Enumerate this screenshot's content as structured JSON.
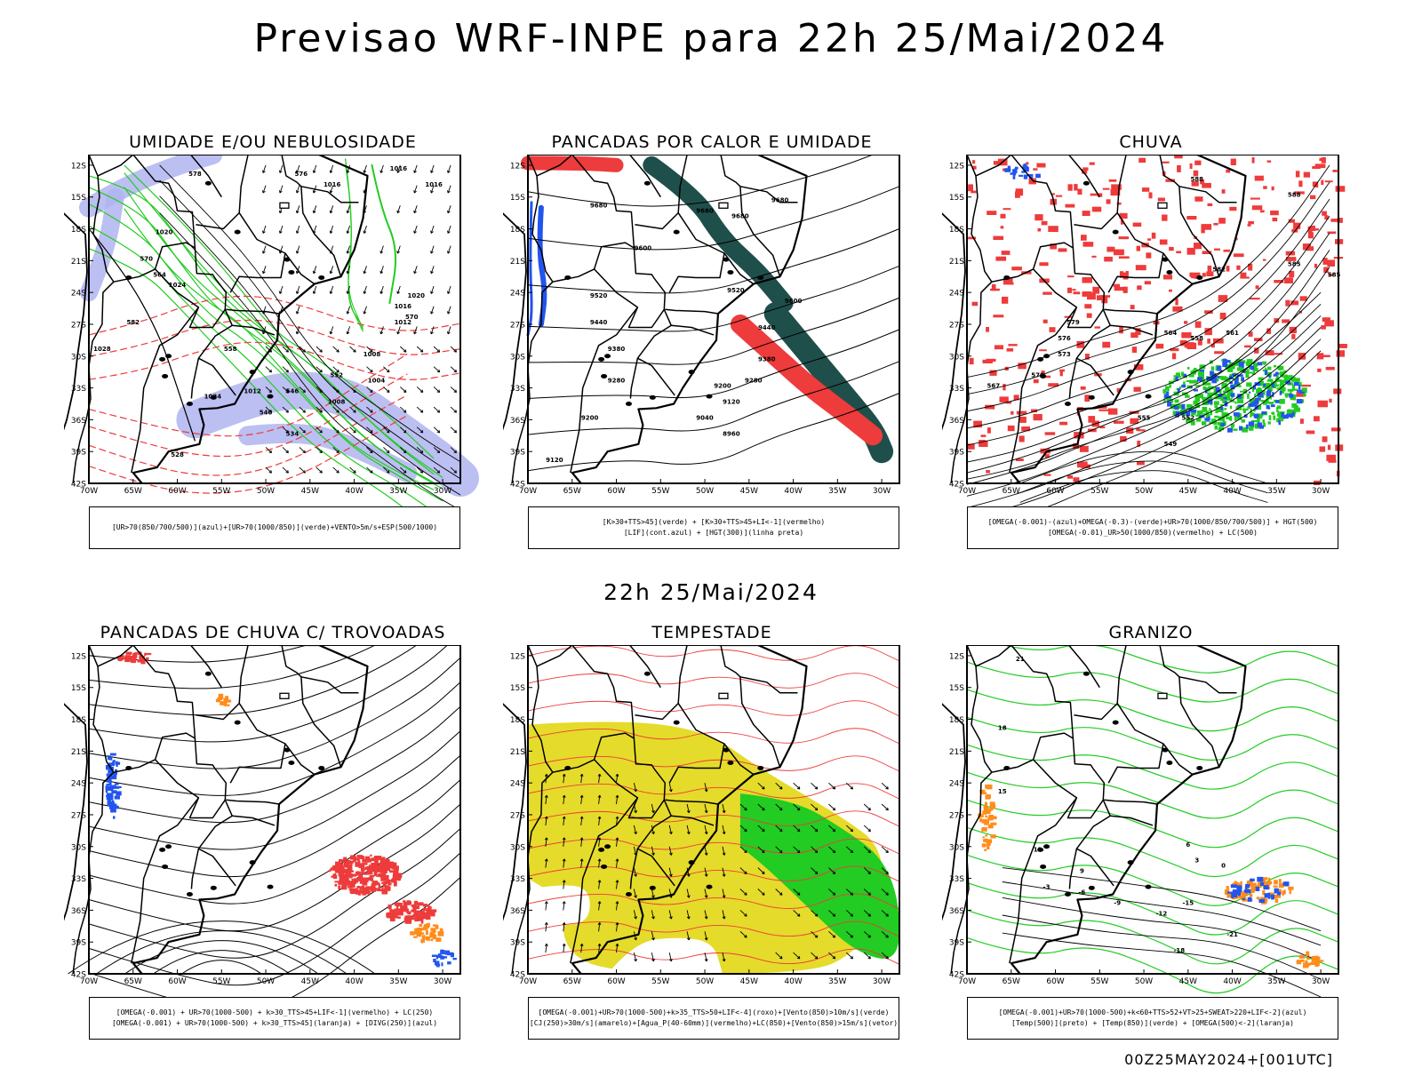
{
  "header": {
    "main_title": "Previsao WRF-INPE  para 22h 25/Mai/2024",
    "mid_title": "22h 25/Mai/2024",
    "footer_code": "00Z25MAY2024+[001UTC]"
  },
  "axes": {
    "lat_labels": [
      "12S",
      "15S",
      "18S",
      "21S",
      "24S",
      "27S",
      "30S",
      "33S",
      "36S",
      "39S",
      "42S"
    ],
    "lon_labels": [
      "70W",
      "65W",
      "60W",
      "55W",
      "50W",
      "45W",
      "40W",
      "35W",
      "30W"
    ]
  },
  "colors": {
    "red": "#ee3b3b",
    "green": "#22cc22",
    "blue": "#2255ee",
    "lightblue": "#b0b4f0",
    "darkgreen": "#1f4f4a",
    "yellow": "#e5db2a",
    "orange": "#ff8c1a",
    "black": "#000000"
  },
  "panels": [
    {
      "title": "UMIDADE E/OU NEBULOSIDADE",
      "legend": [
        "[UR>70(850/700/500)](azul)+[UR>70(1000/850)](verde)+VENTO>5m/s+ESP(500/1000)"
      ],
      "contour_labels": [
        "1016",
        "1016",
        "1016",
        "1020",
        "1024",
        "1028",
        "1020",
        "1016",
        "1012",
        "1008",
        "1004",
        "1008",
        "1012",
        "1024",
        "578",
        "576",
        "570",
        "564",
        "558",
        "552",
        "546",
        "540",
        "534",
        "528",
        "582",
        "570"
      ]
    },
    {
      "title": "PANCADAS POR CALOR E UMIDADE",
      "legend": [
        "[K>30+TTS>45](verde) + [K>30+TTS>45+LI<-1](vermelho)",
        "[LIF](cont.azul) + [HGT(300)](linha preta)"
      ],
      "contour_labels": [
        "9680",
        "9680",
        "9680",
        "9680",
        "9600",
        "9600",
        "9520",
        "9520",
        "9440",
        "9440",
        "9380",
        "9380",
        "9280",
        "9280",
        "9200",
        "9200",
        "9120",
        "9120",
        "9040",
        "8960"
      ]
    },
    {
      "title": "CHUVA",
      "legend": [
        "[OMEGA(-0.001)-(azul)+OMEGA(-0.3)-(verde)+UR>70(1000/850/700/500)] + HGT(500)",
        "[OMEGA(-0.01)_UR>50(1000/850)(vermelho) + LC(500)"
      ],
      "contour_labels": [
        "588",
        "588",
        "585",
        "582",
        "579",
        "576",
        "573",
        "570",
        "567",
        "564",
        "561",
        "558",
        "555",
        "552",
        "549",
        "585"
      ]
    },
    {
      "title": "PANCADAS DE CHUVA C/ TROVOADAS",
      "legend": [
        "[OMEGA(-0.001) + UR>70(1000-500) + k>30_TTS>45+LIF<-1](vermelho) + LC(250)",
        "[OMEGA(-0.001) + UR>70(1000-500) + k>30_TTS>45](laranja) + [DIVG(250)](azul)"
      ],
      "contour_labels": []
    },
    {
      "title": "TEMPESTADE",
      "legend": [
        "[OMEGA(-0.001)+UR>70(1000-500)+k>35_TTS>50+LIF<-4](roxo)+[Vento(850)>10m/s](verde)",
        "[CJ(250)>30m/s](amarelo)+[Agua_P(40-60mm)](vermelho)+LC(850)+[Vento(850)>15m/s](vetor)"
      ],
      "contour_labels": []
    },
    {
      "title": "GRANIZO",
      "legend": [
        "[OMEGA(-0.001)+UR>70(1000-500)+k<60+TTS>52+VT>25+SWEAT>220+LIF<-2](azul)",
        "[Temp(500)](preto) + [Temp(850)](verde) + [OMEGA(500)<-2](laranja)"
      ],
      "contour_labels": [
        "21",
        "18",
        "15",
        "12",
        "9",
        "6",
        "3",
        "0",
        "-3",
        "-6",
        "-9",
        "-12",
        "-15",
        "-18",
        "-21"
      ]
    }
  ]
}
